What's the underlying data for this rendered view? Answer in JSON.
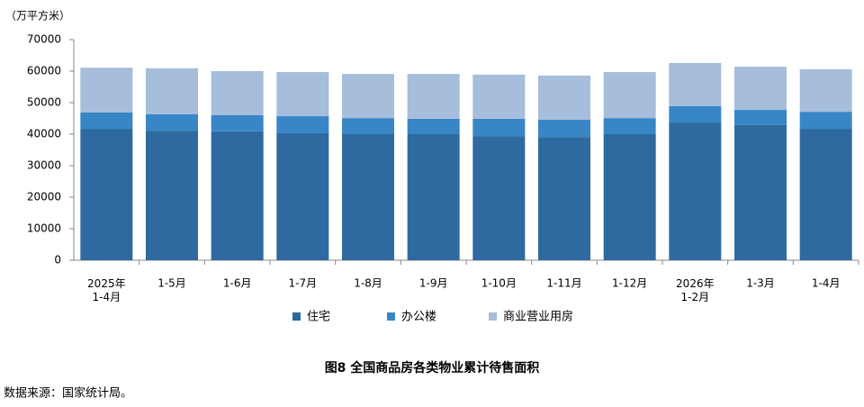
{
  "chart_data": {
    "type": "stacked-bar",
    "unit_label": "（万平方米）",
    "title": "图8 全国商品房各类物业累计待售面积",
    "source": "数据来源：国家统计局。",
    "categories": [
      "2025年\n1-4月",
      "1-5月",
      "1-6月",
      "1-7月",
      "1-8月",
      "1-9月",
      "1-10月",
      "1-11月",
      "1-12月",
      "2026年\n1-2月",
      "1-3月",
      "1-4月"
    ],
    "series": [
      {
        "name": "住宅",
        "color": "#2e6a9f",
        "values": [
          41700,
          41100,
          40900,
          40300,
          40000,
          40000,
          39400,
          39100,
          40000,
          43700,
          42900,
          41700
        ]
      },
      {
        "name": "办公楼",
        "color": "#3886c6",
        "values": [
          5200,
          5200,
          5100,
          5400,
          5100,
          4900,
          5500,
          5500,
          5100,
          5200,
          4800,
          5400
        ]
      },
      {
        "name": "商业营业用房",
        "color": "#a6bddb",
        "values": [
          14200,
          14600,
          14000,
          14000,
          14000,
          14200,
          14000,
          14000,
          14600,
          13700,
          13700,
          13500
        ]
      }
    ],
    "ylim": [
      0,
      70000
    ],
    "yticks": [
      0,
      10000,
      20000,
      30000,
      40000,
      50000,
      60000,
      70000
    ],
    "grid": false
  }
}
